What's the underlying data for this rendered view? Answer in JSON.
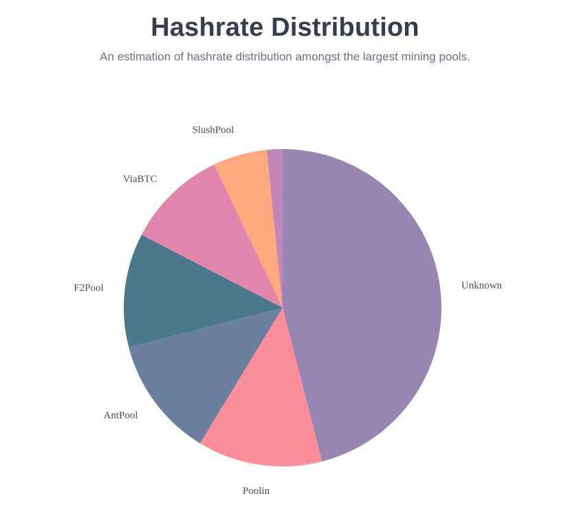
{
  "header": {
    "title": "Hashrate Distribution",
    "subtitle": "An estimation of hashrate distribution amongst the largest mining pools."
  },
  "chart_data": {
    "type": "pie",
    "title": "Hashrate Distribution",
    "subtitle": "An estimation of hashrate distribution amongst the largest mining pools.",
    "start_angle_deg": 0,
    "direction": "clockwise",
    "legend": "none",
    "slices": [
      {
        "label": "Unknown",
        "value": 46.0,
        "color": "#9786b1"
      },
      {
        "label": "Poolin",
        "value": 12.7,
        "color": "#fb8e99"
      },
      {
        "label": "AntPool",
        "value": 12.3,
        "color": "#6b7f9e"
      },
      {
        "label": "F2Pool",
        "value": 11.6,
        "color": "#4b788b"
      },
      {
        "label": "ViaBTC",
        "value": 10.3,
        "color": "#e085ab"
      },
      {
        "label": "SlushPool",
        "value": 5.5,
        "color": "#fea87d"
      },
      {
        "label": "",
        "value": 1.6,
        "color": "#bf88b8"
      }
    ]
  }
}
